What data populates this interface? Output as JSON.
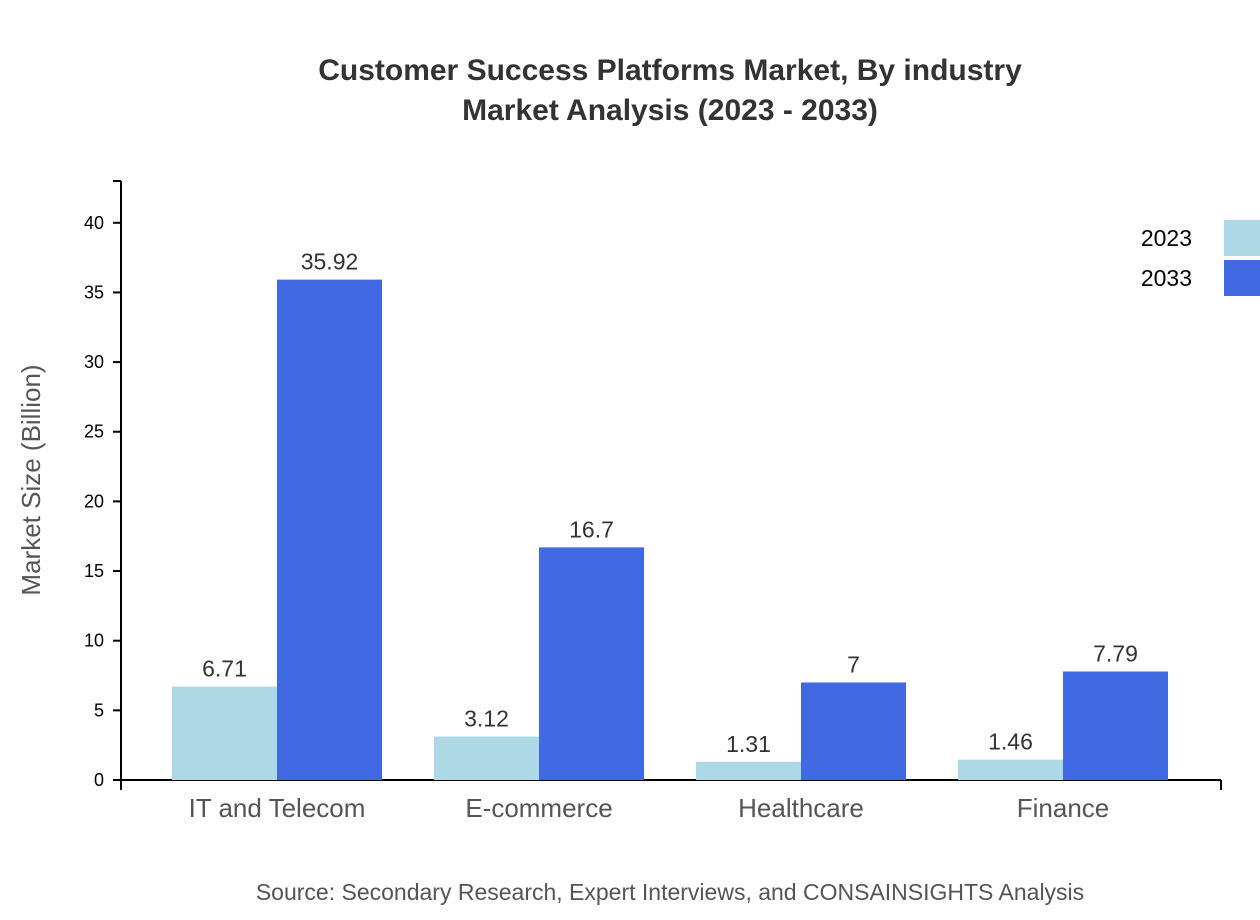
{
  "chart_data": {
    "type": "bar",
    "title": "Customer Success Platforms Market, By industry",
    "subtitle": "Market Analysis (2023 - 2033)",
    "xlabel": "",
    "ylabel": "Market Size (Billion)",
    "ylim": [
      0,
      43
    ],
    "yticks": [
      0,
      5,
      10,
      15,
      20,
      25,
      30,
      35,
      40
    ],
    "grid": false,
    "legend_placement": "top-right",
    "categories": [
      "IT and Telecom",
      "E-commerce",
      "Healthcare",
      "Finance"
    ],
    "series": [
      {
        "name": "2023",
        "color": "#add8e6",
        "values": [
          6.71,
          3.12,
          1.31,
          1.46
        ]
      },
      {
        "name": "2033",
        "color": "#4169e1",
        "values": [
          35.92,
          16.7,
          7,
          7.79
        ]
      }
    ],
    "source": "Source: Secondary Research, Expert Interviews, and CONSAINSIGHTS Analysis"
  }
}
